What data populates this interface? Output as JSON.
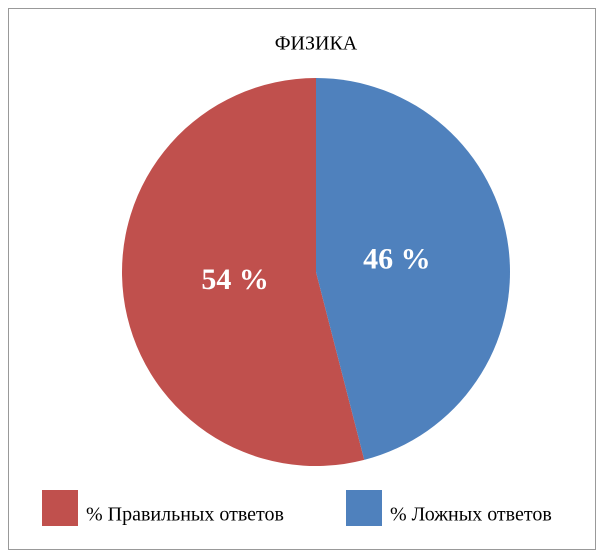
{
  "chart_data": {
    "type": "pie",
    "title": "ФИЗИКА",
    "categories": [
      "% Правильных ответов",
      "% Ложных ответов"
    ],
    "values": [
      54,
      46
    ],
    "value_labels": [
      "54 %",
      "46 %"
    ],
    "colors": [
      "#c0504d",
      "#4f81bd"
    ],
    "legend": "bottom"
  }
}
